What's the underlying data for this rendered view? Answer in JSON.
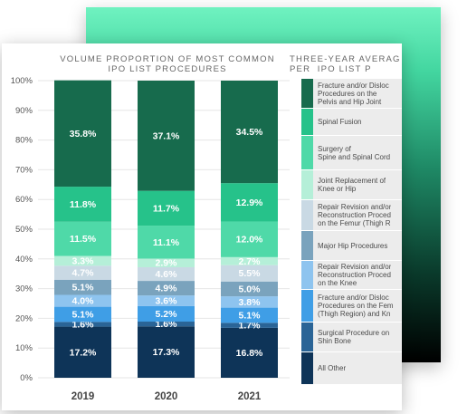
{
  "chart_data": {
    "type": "bar",
    "stacked": true,
    "title": "VOLUME PROPORTION OF MOST COMMON\nIPO LIST PROCEDURES",
    "categories": [
      "2019",
      "2020",
      "2021"
    ],
    "ylim": [
      0,
      100
    ],
    "yticks": [
      "0%",
      "10%",
      "20%",
      "30%",
      "40%",
      "50%",
      "60%",
      "70%",
      "80%",
      "90%",
      "100%"
    ],
    "series": [
      {
        "name": "All Other",
        "color": "#0e3458",
        "values": [
          17.2,
          17.3,
          16.8
        ],
        "labels": [
          "17.2%",
          "17.3%",
          "16.8%"
        ]
      },
      {
        "name": "Surgical Procedure on\nShin Bone",
        "color": "#2a6496",
        "values": [
          1.6,
          1.6,
          1.7
        ],
        "labels": [
          "1.6%",
          "1.6%",
          "1.7%"
        ]
      },
      {
        "name": "Fracture and/or Disloc\nProcedures on the Fem\n(Thigh Region) and Kn",
        "color": "#3f9ee6",
        "values": [
          5.1,
          5.2,
          5.1
        ],
        "labels": [
          "5.1%",
          "5.2%",
          "5.1%"
        ]
      },
      {
        "name": "Repair Revision and/or\nReconstruction Proced\non the Knee",
        "color": "#8ec4ef",
        "values": [
          4.0,
          3.6,
          3.8
        ],
        "labels": [
          "4.0%",
          "3.6%",
          "3.8%"
        ]
      },
      {
        "name": "Major Hip Procedures",
        "color": "#7aa3bd",
        "values": [
          5.1,
          4.9,
          5.0
        ],
        "labels": [
          "5.1%",
          "4.9%",
          "5.0%"
        ]
      },
      {
        "name": "Repair Revision and/or\nReconstruction Proced\non the Femur (Thigh R",
        "color": "#c9d9e4",
        "values": [
          4.7,
          4.6,
          5.5
        ],
        "labels": [
          "4.7%",
          "4.6%",
          "5.5%"
        ]
      },
      {
        "name": "Joint Replacement of\nKnee or Hip",
        "color": "#b5efd8",
        "values": [
          3.3,
          2.9,
          2.7
        ],
        "labels": [
          "3.3%",
          "2.9%",
          "2.7%"
        ]
      },
      {
        "name": "Surgery of\nSpine and Spinal Cord",
        "color": "#4fd9a8",
        "values": [
          11.5,
          11.1,
          12.0
        ],
        "labels": [
          "11.5%",
          "11.1%",
          "12.0%"
        ]
      },
      {
        "name": "Spinal Fusion",
        "color": "#26c28a",
        "values": [
          11.8,
          11.7,
          12.9
        ],
        "labels": [
          "11.8%",
          "11.7%",
          "12.9%"
        ]
      },
      {
        "name": "Fracture and/or Disloc\nProcedures on the\nPelvis and Hip Joint",
        "color": "#176b4d",
        "values": [
          35.8,
          37.1,
          34.5
        ],
        "labels": [
          "35.8%",
          "37.1%",
          "34.5%"
        ]
      }
    ],
    "legend_title": "THREE-YEAR AVERAG\nPER  IPO LIST P",
    "legend_order": [
      9,
      8,
      7,
      6,
      5,
      4,
      3,
      2,
      1,
      0
    ]
  }
}
